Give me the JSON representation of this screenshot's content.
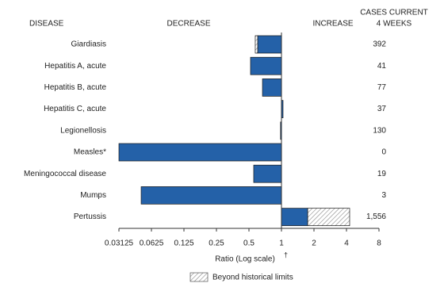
{
  "chart_data": {
    "type": "bar",
    "orientation": "horizontal",
    "log_scale": true,
    "base": 1,
    "headers": {
      "disease": "DISEASE",
      "decrease": "DECREASE",
      "increase": "INCREASE",
      "cases_line1": "CASES CURRENT",
      "cases_line2": "4 WEEKS"
    },
    "categories": [
      "Giardiasis",
      "Hepatitis A, acute",
      "Hepatitis B, acute",
      "Hepatitis C, acute",
      "Legionellosis",
      "Measles*",
      "Meningococcal disease",
      "Mumps",
      "Pertussis"
    ],
    "values": [
      0.572,
      0.517,
      0.667,
      1.034,
      0.98,
      0.03125,
      0.553,
      0.0502,
      4.28
    ],
    "historical_limits": [
      0.602,
      null,
      null,
      null,
      null,
      null,
      null,
      null,
      1.75
    ],
    "cases": [
      "392",
      "41",
      "77",
      "37",
      "130",
      "0",
      "19",
      "3",
      "1,556"
    ],
    "color": "#2461a8",
    "hatch_color": "#888888",
    "xlim": [
      0.03125,
      8
    ],
    "xticks": [
      0.03125,
      0.0625,
      0.125,
      0.25,
      0.5,
      1,
      2,
      4,
      8
    ],
    "x_label": "Ratio (Log scale)",
    "x_label_mark": "†",
    "legend": "Beyond historical limits"
  }
}
